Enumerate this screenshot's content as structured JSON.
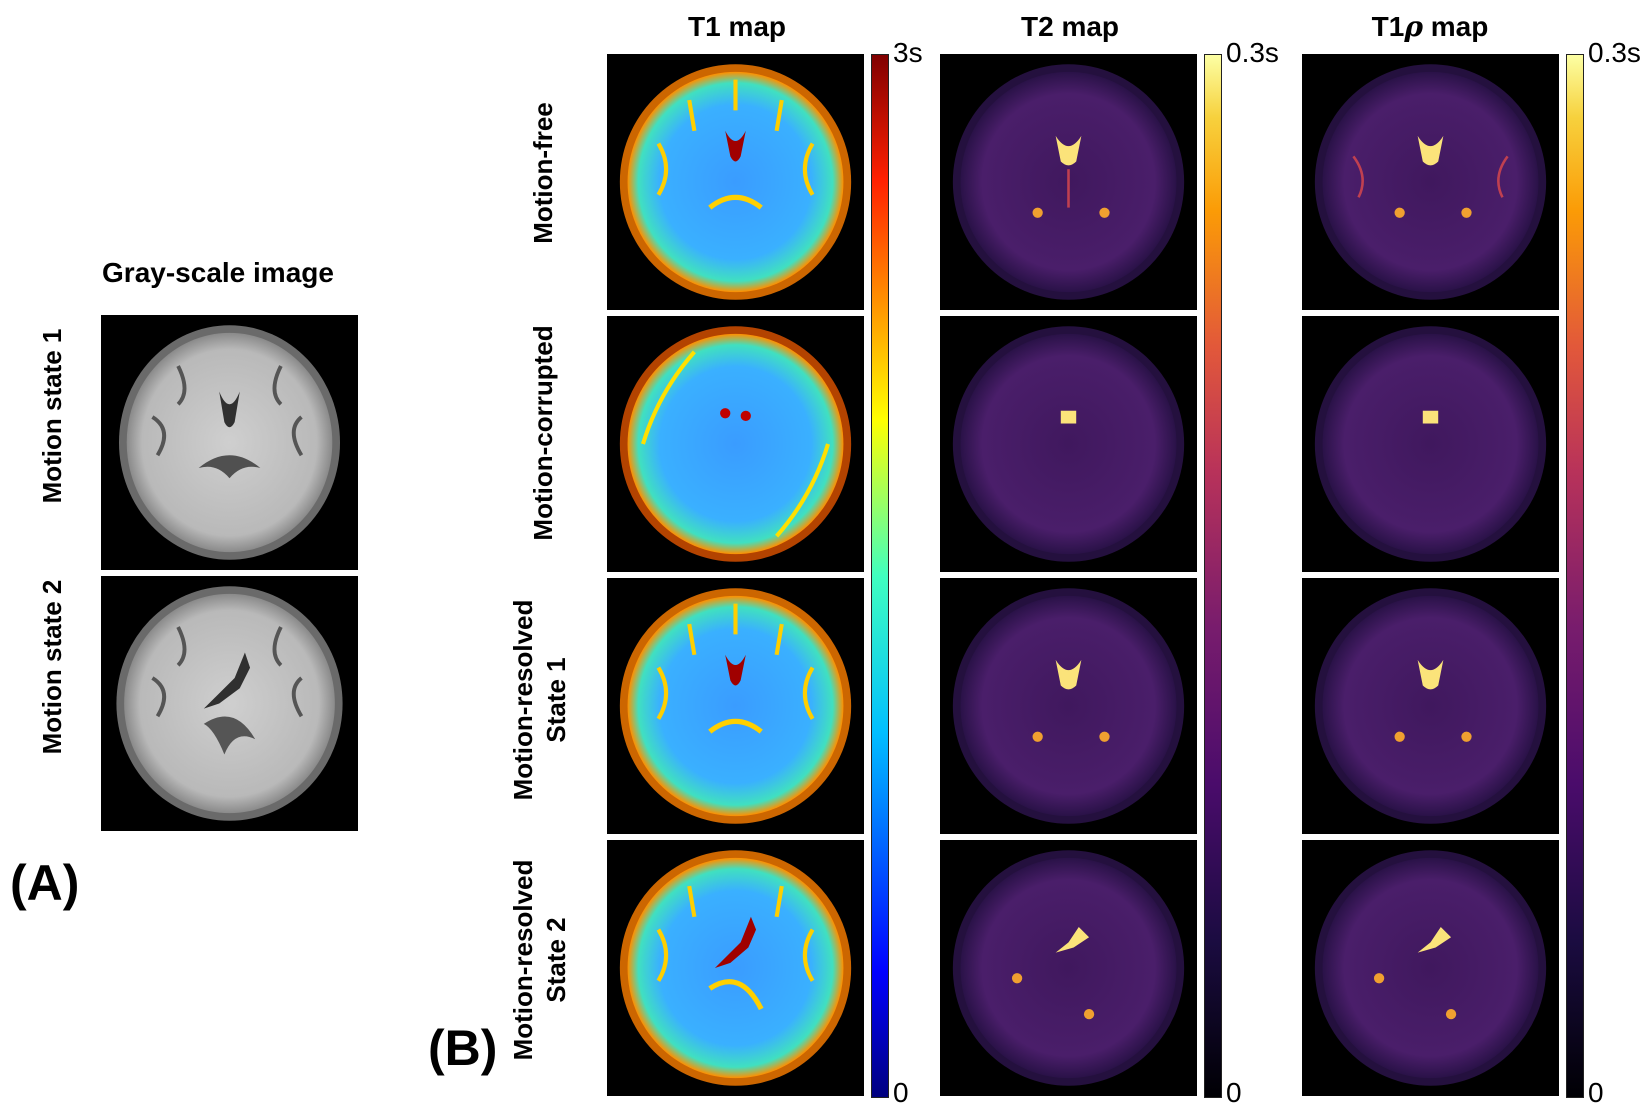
{
  "panel_a": {
    "label": "(A)",
    "title": "Gray-scale image",
    "rows": [
      "Motion state 1",
      "Motion state 2"
    ]
  },
  "panel_b": {
    "label": "(B)",
    "rows": [
      {
        "line1": "Motion-free",
        "line2": ""
      },
      {
        "line1": "Motion-corrupted",
        "line2": ""
      },
      {
        "line1": "Motion-resolved",
        "line2": "State 1"
      },
      {
        "line1": "Motion-resolved",
        "line2": "State 2"
      }
    ],
    "columns": [
      {
        "title": "T1 map",
        "cbar_max": "3s",
        "cbar_min": "0",
        "colormap": "jet"
      },
      {
        "title": "T2 map",
        "cbar_max": "0.3s",
        "cbar_min": "0",
        "colormap": "inferno"
      },
      {
        "title_prefix": "T1",
        "title_symbol": "ρ",
        "title_suffix": " map",
        "cbar_max": "0.3s",
        "cbar_min": "0",
        "colormap": "inferno"
      }
    ]
  },
  "colors": {
    "jet": [
      "#00007f",
      "#0000ff",
      "#007fff",
      "#00ffff",
      "#7fff7f",
      "#ffff00",
      "#ff7f00",
      "#ff0000",
      "#7f0000"
    ],
    "inferno": [
      "#000004",
      "#1b0c41",
      "#4a0c6b",
      "#781c6d",
      "#a52c60",
      "#cf4446",
      "#ed6925",
      "#fb9b06",
      "#f7d13d",
      "#fcffa4"
    ],
    "gray_bg": "#c8c8c8",
    "t1_brain": "#3aa0ff",
    "t2_brain": "#3b1a5a"
  }
}
